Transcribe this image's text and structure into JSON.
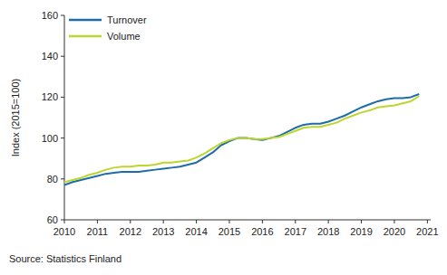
{
  "chart_data": {
    "type": "line",
    "y_label": "Index (2015=100)",
    "source": "Source: Statistics Finland",
    "x": [
      2010,
      2010.25,
      2010.5,
      2010.75,
      2011,
      2011.25,
      2011.5,
      2011.75,
      2012,
      2012.25,
      2012.5,
      2012.75,
      2013,
      2013.25,
      2013.5,
      2013.75,
      2014,
      2014.25,
      2014.5,
      2014.75,
      2015,
      2015.25,
      2015.5,
      2015.75,
      2016,
      2016.25,
      2016.5,
      2016.75,
      2017,
      2017.25,
      2017.5,
      2017.75,
      2018,
      2018.25,
      2018.5,
      2018.75,
      2019,
      2019.25,
      2019.5,
      2019.75,
      2020,
      2020.25,
      2020.5,
      2020.75
    ],
    "series": [
      {
        "name": "Turnover",
        "color": "#1c6ca8",
        "values": [
          77,
          78.5,
          79.5,
          80.5,
          81.5,
          82.5,
          83,
          83.5,
          83.5,
          83.5,
          84,
          84.5,
          85,
          85.5,
          86,
          87,
          88,
          90.5,
          93,
          96.5,
          98.5,
          100,
          100,
          99.5,
          99,
          100,
          101,
          103,
          105,
          106.5,
          107,
          107,
          108,
          109.5,
          111,
          113,
          115,
          116.5,
          118,
          119,
          119.5,
          119.5,
          120,
          121.5
        ]
      },
      {
        "name": "Volume",
        "color": "#bdd62f",
        "values": [
          78.5,
          79.5,
          80.5,
          82,
          83,
          84.5,
          85.5,
          86,
          86,
          86.5,
          86.5,
          87,
          88,
          88,
          88.5,
          89,
          90.5,
          92.5,
          95,
          97.5,
          99,
          100,
          100,
          99.5,
          99.5,
          100,
          100.5,
          102,
          103.5,
          105,
          105.5,
          105.5,
          106.5,
          107.5,
          109.5,
          111,
          112.5,
          113.5,
          115,
          115.5,
          116,
          117,
          118,
          120.5
        ]
      }
    ],
    "xlim": [
      2010,
      2021.1
    ],
    "xticks": [
      2010,
      2011,
      2012,
      2013,
      2014,
      2015,
      2016,
      2017,
      2018,
      2019,
      2020,
      2021
    ],
    "ylim": [
      60,
      160
    ],
    "yticks": [
      60,
      80,
      100,
      120,
      140,
      160
    ],
    "grid": false,
    "legend": "upper-left"
  }
}
